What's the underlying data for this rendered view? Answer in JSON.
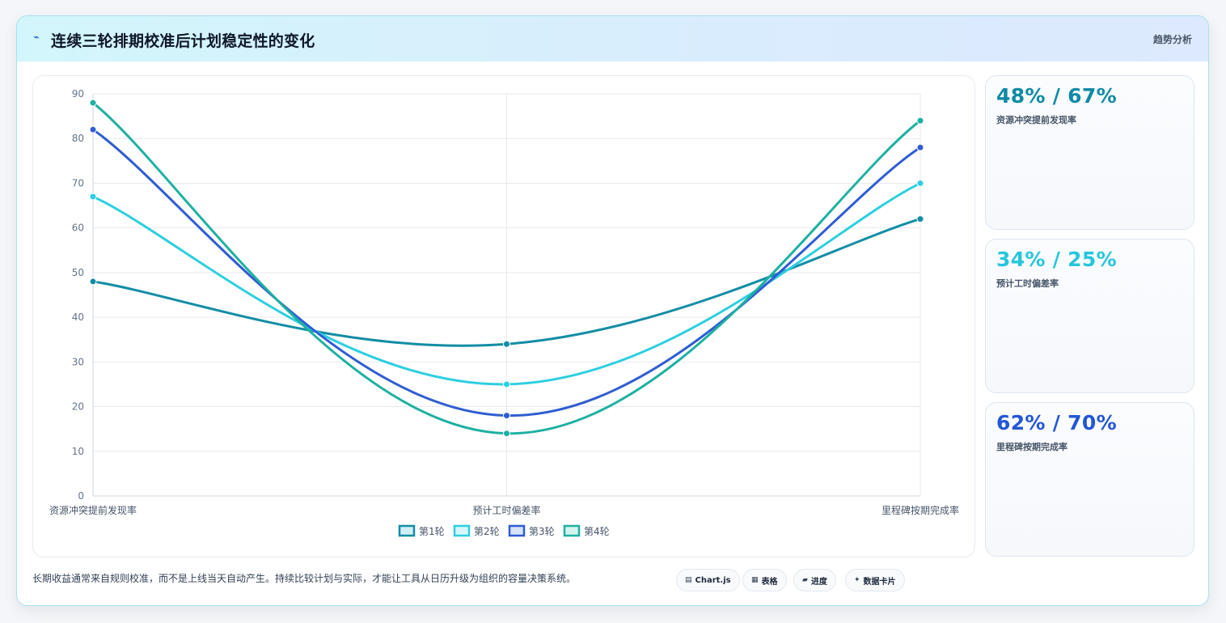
{
  "header": {
    "icon": "lightning-icon",
    "title": "连续三轮排期校准后计划稳定性的变化",
    "right_label": "趋势分析"
  },
  "chart_data": {
    "type": "line",
    "categories": [
      "资源冲突提前发现率",
      "预计工时偏差率",
      "里程碑按期完成率"
    ],
    "ylim": [
      0,
      90
    ],
    "yticks": [
      0,
      10,
      20,
      30,
      40,
      50,
      60,
      70,
      80,
      90
    ],
    "grid": true,
    "smooth": true,
    "legend_position": "bottom",
    "series": [
      {
        "name": "第1轮",
        "values": [
          48,
          34,
          62
        ],
        "color": "#138da5",
        "fill": "#cfeff5"
      },
      {
        "name": "第2轮",
        "values": [
          67,
          25,
          70
        ],
        "color": "#2dcfe0",
        "fill": "#d8f7fb"
      },
      {
        "name": "第3轮",
        "values": [
          82,
          18,
          78
        ],
        "color": "#2f5dd1",
        "fill": "#d7e2fb"
      },
      {
        "name": "第4轮",
        "values": [
          88,
          14,
          84
        ],
        "color": "#1db0a2",
        "fill": "#d3f3ef"
      }
    ]
  },
  "stats": [
    {
      "value": "48% / 67%",
      "label": "资源冲突提前发现率",
      "color": "#0e8aa6"
    },
    {
      "value": "34% / 25%",
      "label": "预计工时偏差率",
      "color": "#26c6dc"
    },
    {
      "value": "62% / 70%",
      "label": "里程碑按期完成率",
      "color": "#2357d6"
    }
  ],
  "footer": {
    "note": "长期收益通常来自规则校准，而不是上线当天自动产生。持续比较计划与实际，才能让工具从日历升级为组织的容量决策系统。",
    "pills": [
      {
        "icon": "chart-icon",
        "glyph": "▤",
        "label": "Chart.js"
      },
      {
        "icon": "table-icon",
        "glyph": "▦",
        "label": "表格"
      },
      {
        "icon": "progress-icon",
        "glyph": "▰",
        "label": "进度"
      },
      {
        "icon": "sparkle-icon",
        "glyph": "✦",
        "label": "数据卡片"
      }
    ]
  }
}
